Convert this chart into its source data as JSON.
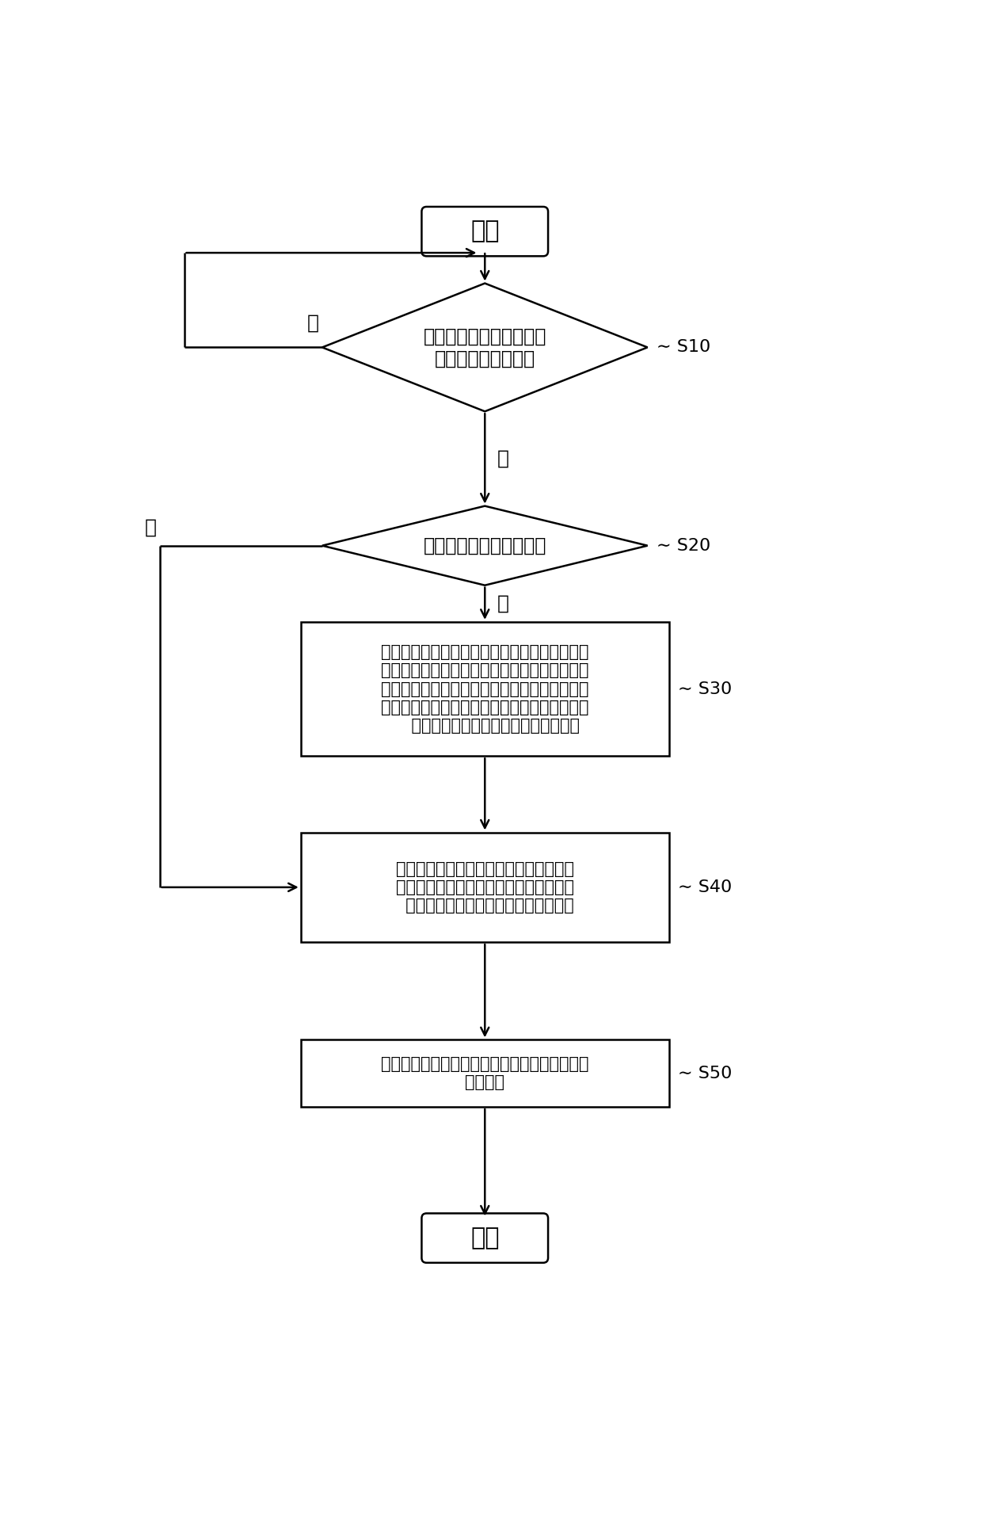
{
  "bg_color": "#ffffff",
  "line_color": "#000000",
  "text_color": "#000000",
  "lw": 1.8,
  "start_text": "开始",
  "end_text": "结束",
  "d1_text": "当前有叶片位于有效测量\n净空的角度范围内？",
  "d1_step": "S10",
  "d2_text": "净空是否小于净空阈值？",
  "d2_step": "S20",
  "b1_text": "在下一个叶片从当前位置转入有效测量净空的角\n度范围内的过程中，将下一个叶片的附加桨距角\n给定值增加到预定附加桨距角给定值，以及将统\n一桨距角给定值与下一个叶片的附加桨距角给定\n    值相加得到下一个叶片的桨距角给定值",
  "b1_step": "S30",
  "b2_text": "在下一个叶片从当前位置转入有效测量净\n空的角度范围内的过程中，将统一桨距角\n  给定值作为下一个叶片的桨距角给定值",
  "b2_step": "S40",
  "b3_text": "按照下一个叶片的桨距角给定值控制下一个叶片\n进行变桨",
  "b3_step": "S50",
  "yes_label": "是",
  "no_label": "否"
}
